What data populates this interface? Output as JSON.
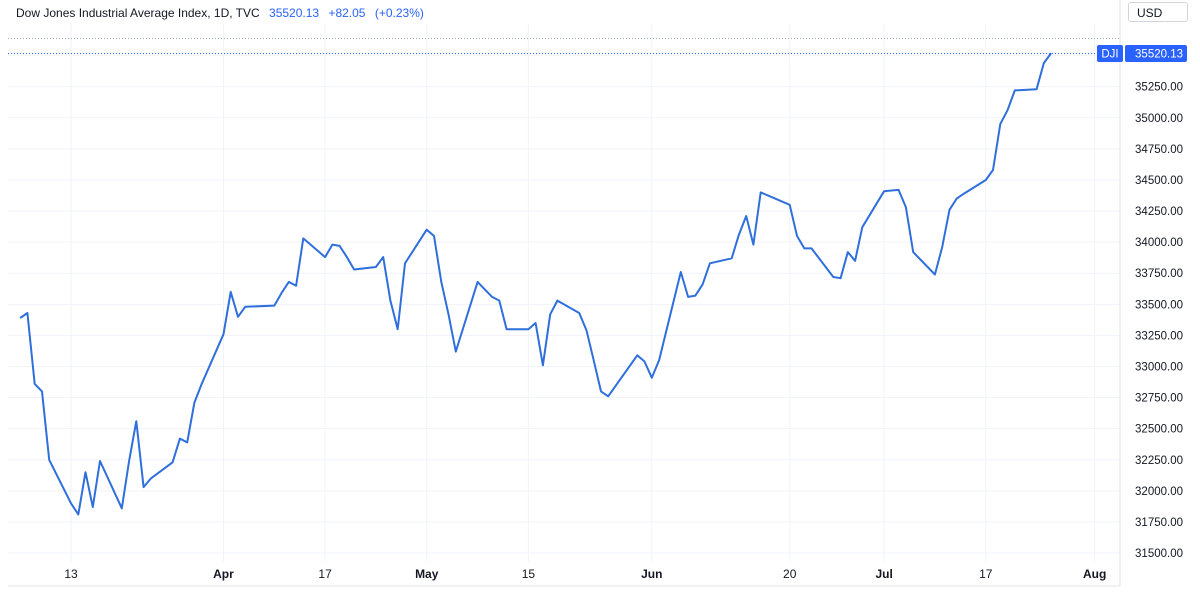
{
  "header": {
    "title": "Dow Jones Industrial Average Index, 1D, TVC",
    "last": "35520.13",
    "change": "+82.05",
    "change_pct": "(+0.23%)"
  },
  "currency_label": "USD",
  "price_label": {
    "symbol": "DJI",
    "value": "35520.13"
  },
  "colors": {
    "line": "#2f6fdb",
    "label_bg": "#2962ff",
    "grid": "#f0f3fa",
    "text": "#131722"
  },
  "chart_data": {
    "type": "line",
    "title": "Dow Jones Industrial Average Index, 1D, TVC",
    "xlabel": "",
    "ylabel": "",
    "x_tick_labels": [
      "13",
      "Apr",
      "17",
      "May",
      "15",
      "Jun",
      "20",
      "Jul",
      "17",
      "Aug"
    ],
    "y_tick_labels": [
      "35500.00",
      "35250.00",
      "35000.00",
      "34750.00",
      "34500.00",
      "34250.00",
      "34000.00",
      "33750.00",
      "33500.00",
      "33250.00",
      "33000.00",
      "32750.00",
      "32500.00",
      "32250.00",
      "32000.00",
      "31750.00",
      "31500.00"
    ],
    "ylim": [
      31400,
      35800
    ],
    "grid": true,
    "series": [
      {
        "x": [
          "2023-03-06",
          "2023-03-07",
          "2023-03-08",
          "2023-03-09",
          "2023-03-10",
          "2023-03-13",
          "2023-03-14",
          "2023-03-15",
          "2023-03-16",
          "2023-03-17",
          "2023-03-20",
          "2023-03-21",
          "2023-03-22",
          "2023-03-23",
          "2023-03-24",
          "2023-03-27",
          "2023-03-28",
          "2023-03-29",
          "2023-03-30",
          "2023-03-31",
          "2023-04-03",
          "2023-04-04",
          "2023-04-05",
          "2023-04-06",
          "2023-04-10",
          "2023-04-11",
          "2023-04-12",
          "2023-04-13",
          "2023-04-14",
          "2023-04-17",
          "2023-04-18",
          "2023-04-19",
          "2023-04-20",
          "2023-04-21",
          "2023-04-24",
          "2023-04-25",
          "2023-04-26",
          "2023-04-27",
          "2023-04-28",
          "2023-05-01",
          "2023-05-02",
          "2023-05-03",
          "2023-05-04",
          "2023-05-05",
          "2023-05-08",
          "2023-05-09",
          "2023-05-10",
          "2023-05-11",
          "2023-05-12",
          "2023-05-15",
          "2023-05-16",
          "2023-05-17",
          "2023-05-18",
          "2023-05-19",
          "2023-05-22",
          "2023-05-23",
          "2023-05-24",
          "2023-05-25",
          "2023-05-26",
          "2023-05-30",
          "2023-05-31",
          "2023-06-01",
          "2023-06-02",
          "2023-06-05",
          "2023-06-06",
          "2023-06-07",
          "2023-06-08",
          "2023-06-09",
          "2023-06-12",
          "2023-06-13",
          "2023-06-14",
          "2023-06-15",
          "2023-06-16",
          "2023-06-20",
          "2023-06-21",
          "2023-06-22",
          "2023-06-23",
          "2023-06-26",
          "2023-06-27",
          "2023-06-28",
          "2023-06-29",
          "2023-06-30",
          "2023-07-03",
          "2023-07-05",
          "2023-07-06",
          "2023-07-07",
          "2023-07-10",
          "2023-07-11",
          "2023-07-12",
          "2023-07-13",
          "2023-07-14",
          "2023-07-17",
          "2023-07-18",
          "2023-07-19",
          "2023-07-20",
          "2023-07-21",
          "2023-07-24",
          "2023-07-25"
        ],
        "values": [
          33390,
          33430,
          32860,
          32800,
          32250,
          31900,
          31810,
          32150,
          31870,
          32240,
          31860,
          32240,
          32560,
          32030,
          32100,
          32230,
          32420,
          32390,
          32710,
          32860,
          33260,
          33600,
          33400,
          33480,
          33490,
          33590,
          33680,
          33650,
          34030,
          33880,
          33980,
          33970,
          33880,
          33780,
          33800,
          33880,
          33530,
          33300,
          33830,
          34100,
          34050,
          33680,
          33420,
          33120,
          33680,
          33620,
          33560,
          33530,
          33300,
          33300,
          33350,
          33010,
          33420,
          33530,
          33430,
          33290,
          33050,
          32800,
          32760,
          33090,
          33040,
          32910,
          33050,
          33760,
          33560,
          33570,
          33660,
          33830,
          33870,
          34060,
          34210,
          33980,
          34400,
          34300,
          34050,
          33950,
          33950,
          33720,
          33710,
          33920,
          33850,
          34120,
          34410,
          34420,
          34280,
          33920,
          33740,
          33960,
          34260,
          34350,
          34390,
          34500,
          34580,
          34950,
          35060,
          35220,
          35230,
          35440
        ]
      }
    ],
    "last_value": 35520.13
  }
}
